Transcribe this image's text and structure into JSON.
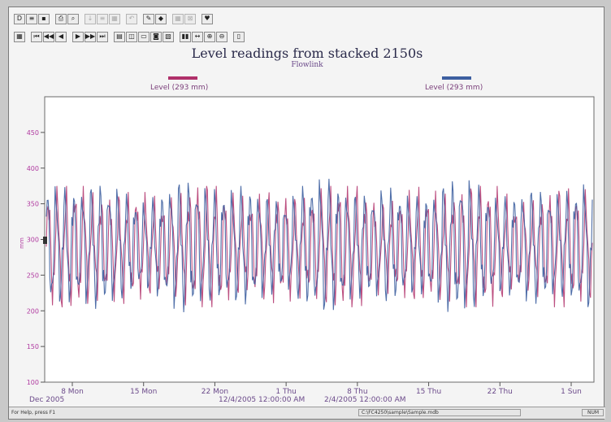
{
  "chart_data": {
    "type": "line",
    "title": "Level readings from stacked 2150s",
    "subtitle": "Flowlink",
    "ylabel": "mm",
    "ylim": [
      100,
      500
    ],
    "y_ticks": [
      "100",
      "150",
      "200",
      "250",
      "300",
      "350",
      "400",
      "450"
    ],
    "x_ticks": [
      "8 Mon",
      "15 Mon",
      "22 Mon",
      "1 Thu",
      "8 Thu",
      "15 Thu",
      "22 Thu",
      "1 Sun"
    ],
    "x_start_label": "Dec 2005",
    "cycles": 62,
    "series": [
      {
        "name": "Level (293 mm)",
        "color": "#b0306a",
        "min": 205,
        "max": 375,
        "phase": 0.0
      },
      {
        "name": "Level (293 mm)",
        "color": "#3d5fa0",
        "min": 198,
        "max": 385,
        "phase": 0.15
      }
    ],
    "cursor_labels": [
      "12/4/2005 12:00:00 AM",
      "2/4/2005 12:00:00 AM"
    ]
  },
  "toolbar": {
    "row1": [
      "D",
      "≡",
      "▪",
      "⎙",
      "⌕",
      "↓",
      "≡",
      "▦",
      "↶",
      "✎",
      "◆",
      "▦",
      "⊠",
      "♥"
    ],
    "row2": [
      "▦",
      "⏮",
      "◀◀",
      "◀",
      "▶",
      "▶▶",
      "⏭",
      "▤",
      "◫",
      "▭",
      "◙",
      "▧",
      "▮▮",
      "↔",
      "⊕",
      "⊖",
      "▯"
    ]
  },
  "status": {
    "help": "For Help, press F1",
    "path": "C:\\FC4250\\sample\\Sample.mdb",
    "num": "NUM"
  }
}
